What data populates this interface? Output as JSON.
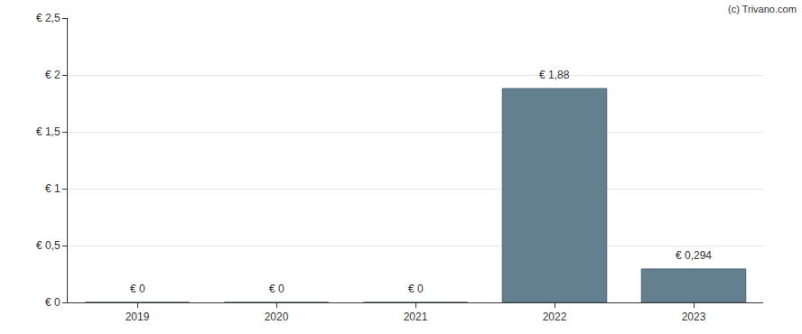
{
  "chart_data": {
    "type": "bar",
    "categories": [
      "2019",
      "2020",
      "2021",
      "2022",
      "2023"
    ],
    "values": [
      0,
      0,
      0,
      1.88,
      0.294
    ],
    "value_labels": [
      "€ 0",
      "€ 0",
      "€ 0",
      "€ 1,88",
      "€ 0,294"
    ],
    "data_labels": true,
    "color": "#64808f",
    "ylim": [
      0,
      2.5
    ],
    "yticks": [
      {
        "value": 0,
        "label": "€ 0"
      },
      {
        "value": 0.5,
        "label": "€ 0,5"
      },
      {
        "value": 1,
        "label": "€ 1"
      },
      {
        "value": 1.5,
        "label": "€ 1,5"
      },
      {
        "value": 2,
        "label": "€ 2"
      },
      {
        "value": 2.5,
        "label": "€ 2,5"
      }
    ],
    "grid": true,
    "annotations": [
      "(c) Trivano.com"
    ]
  }
}
